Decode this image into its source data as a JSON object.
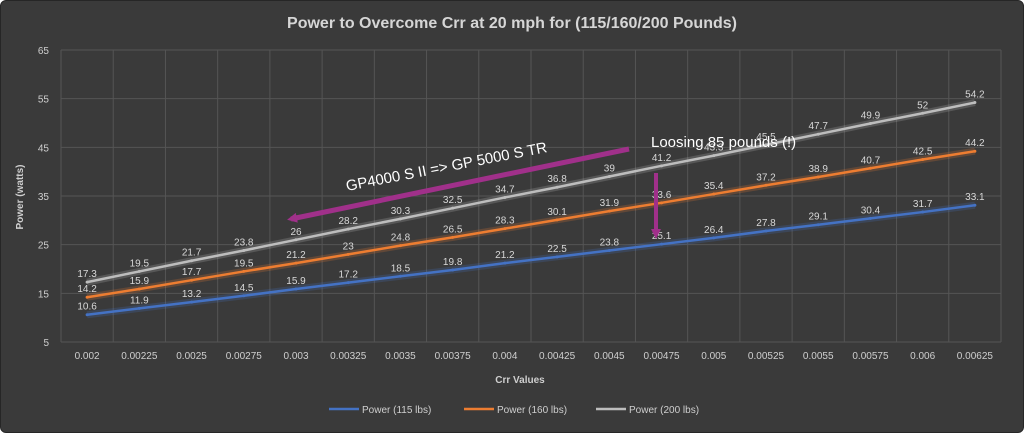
{
  "chart_data": {
    "type": "line",
    "title": "Power to Overcome Crr  at 20 mph for (115/160/200 Pounds)",
    "xlabel": "Crr Values",
    "ylabel": "Power (watts)",
    "ylim": [
      5,
      65
    ],
    "yticks": [
      5,
      15,
      25,
      35,
      45,
      55,
      65
    ],
    "grid": true,
    "legend_position": "bottom",
    "categories": [
      "0.002",
      "0.00225",
      "0.0025",
      "0.00275",
      "0.003",
      "0.00325",
      "0.0035",
      "0.00375",
      "0.004",
      "0.00425",
      "0.0045",
      "0.00475",
      "0.005",
      "0.00525",
      "0.0055",
      "0.00575",
      "0.006",
      "0.00625"
    ],
    "series": [
      {
        "name": "Power  (115 lbs)",
        "color": "#4472c4",
        "values": [
          10.6,
          11.9,
          13.2,
          14.5,
          15.9,
          17.2,
          18.5,
          19.8,
          21.2,
          22.5,
          23.8,
          25.1,
          26.4,
          27.8,
          29.1,
          30.4,
          31.7,
          33.1
        ]
      },
      {
        "name": "Power (160 lbs)",
        "color": "#ed7d31",
        "values": [
          14.2,
          15.9,
          17.7,
          19.5,
          21.2,
          23,
          24.8,
          26.5,
          28.3,
          30.1,
          31.9,
          33.6,
          35.4,
          37.2,
          38.9,
          40.7,
          42.5,
          44.2
        ]
      },
      {
        "name": "Power (200 lbs)",
        "color": "#bdbdbd",
        "values": [
          17.3,
          19.5,
          21.7,
          23.8,
          26,
          28.2,
          30.3,
          32.5,
          34.7,
          36.8,
          39,
          41.2,
          43.3,
          45.5,
          47.7,
          49.9,
          52,
          54.2
        ]
      }
    ],
    "annotations": [
      {
        "text": "GP4000 S II => GP 5000 S TR",
        "color": "#a0308a"
      },
      {
        "text": "Loosing 85 pounds (!)",
        "color": "#a0308a"
      }
    ]
  }
}
